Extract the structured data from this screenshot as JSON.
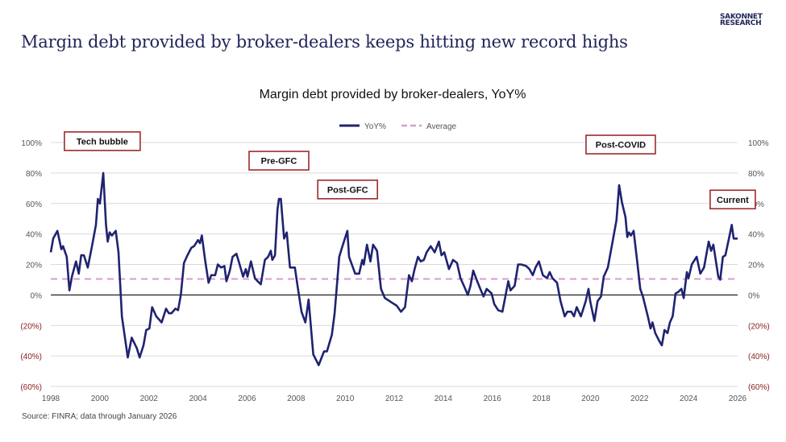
{
  "headline": "Margin debt provided by broker-dealers keeps hitting new record highs",
  "logo": {
    "line1": "SAKONNET",
    "line2": "RESEARCH"
  },
  "source": "Source: FINRA; data through January 2026",
  "colors": {
    "series": "#1f2370",
    "average": "#d99ad0",
    "annotation_border": "#9e2a2a",
    "negative_tick": "#8b2020"
  },
  "chart_data": {
    "type": "line",
    "title": "Margin debt provided by broker-dealers, YoY%",
    "legend": {
      "placement": "top",
      "entries": [
        "YoY%",
        "Average"
      ]
    },
    "grid": true,
    "xlim": [
      1998,
      2026
    ],
    "ylim": [
      -60,
      100
    ],
    "x_ticks": [
      "1998",
      "2000",
      "2002",
      "2004",
      "2006",
      "2008",
      "2010",
      "2012",
      "2014",
      "2016",
      "2018",
      "2020",
      "2022",
      "2024",
      "2026"
    ],
    "y_ticks": [
      {
        "value": 100,
        "label": "100%"
      },
      {
        "value": 80,
        "label": "80%"
      },
      {
        "value": 60,
        "label": "60%"
      },
      {
        "value": 40,
        "label": "40%"
      },
      {
        "value": 20,
        "label": "20%"
      },
      {
        "value": 0,
        "label": "0%"
      },
      {
        "value": -20,
        "label": "(20%)"
      },
      {
        "value": -40,
        "label": "(40%)"
      },
      {
        "value": -60,
        "label": "(60%)"
      }
    ],
    "average": 10.5,
    "annotations": [
      {
        "label": "Tech bubble",
        "year": 2000.1,
        "value": 80
      },
      {
        "label": "Pre-GFC",
        "year": 2007.3,
        "value": 63
      },
      {
        "label": "Post-GFC",
        "year": 2010.1,
        "value": 42
      },
      {
        "label": "Post-COVID",
        "year": 2021.2,
        "value": 72
      },
      {
        "label": "Current",
        "year": 2025.8,
        "value": 46
      }
    ],
    "series": [
      {
        "name": "YoY%",
        "points": [
          [
            1998.0,
            28
          ],
          [
            1998.1,
            37
          ],
          [
            1998.27,
            42
          ],
          [
            1998.43,
            30
          ],
          [
            1998.5,
            32
          ],
          [
            1998.65,
            25
          ],
          [
            1998.76,
            3
          ],
          [
            1998.86,
            12
          ],
          [
            1999.03,
            22
          ],
          [
            1999.14,
            14
          ],
          [
            1999.24,
            26
          ],
          [
            1999.35,
            26
          ],
          [
            1999.51,
            18
          ],
          [
            1999.68,
            32
          ],
          [
            1999.84,
            46
          ],
          [
            1999.92,
            63
          ],
          [
            2000.0,
            60
          ],
          [
            2000.14,
            80
          ],
          [
            2000.25,
            46
          ],
          [
            2000.32,
            35
          ],
          [
            2000.4,
            41
          ],
          [
            2000.49,
            39
          ],
          [
            2000.65,
            42
          ],
          [
            2000.76,
            28
          ],
          [
            2000.9,
            -14
          ],
          [
            2001.14,
            -41
          ],
          [
            2001.3,
            -28
          ],
          [
            2001.51,
            -35
          ],
          [
            2001.62,
            -41
          ],
          [
            2001.78,
            -33
          ],
          [
            2001.89,
            -23
          ],
          [
            2002.02,
            -22
          ],
          [
            2002.13,
            -8
          ],
          [
            2002.3,
            -14
          ],
          [
            2002.52,
            -18
          ],
          [
            2002.7,
            -9
          ],
          [
            2002.81,
            -12
          ],
          [
            2002.92,
            -12
          ],
          [
            2003.08,
            -9
          ],
          [
            2003.19,
            -10
          ],
          [
            2003.3,
            0
          ],
          [
            2003.43,
            21
          ],
          [
            2003.57,
            26
          ],
          [
            2003.73,
            31
          ],
          [
            2003.84,
            32
          ],
          [
            2004.0,
            36
          ],
          [
            2004.08,
            34
          ],
          [
            2004.16,
            39
          ],
          [
            2004.29,
            23
          ],
          [
            2004.43,
            8
          ],
          [
            2004.54,
            13
          ],
          [
            2004.7,
            13
          ],
          [
            2004.81,
            20
          ],
          [
            2004.94,
            18
          ],
          [
            2005.08,
            19
          ],
          [
            2005.16,
            9
          ],
          [
            2005.3,
            16
          ],
          [
            2005.41,
            25
          ],
          [
            2005.57,
            27
          ],
          [
            2005.68,
            21
          ],
          [
            2005.84,
            12
          ],
          [
            2005.95,
            17
          ],
          [
            2006.02,
            12
          ],
          [
            2006.16,
            22
          ],
          [
            2006.32,
            11
          ],
          [
            2006.43,
            9
          ],
          [
            2006.56,
            7
          ],
          [
            2006.73,
            23
          ],
          [
            2006.86,
            25
          ],
          [
            2006.97,
            29
          ],
          [
            2007.03,
            23
          ],
          [
            2007.14,
            26
          ],
          [
            2007.24,
            56
          ],
          [
            2007.3,
            63
          ],
          [
            2007.38,
            63
          ],
          [
            2007.51,
            37
          ],
          [
            2007.62,
            41
          ],
          [
            2007.75,
            18
          ],
          [
            2007.95,
            18
          ],
          [
            2008.05,
            7
          ],
          [
            2008.22,
            -11
          ],
          [
            2008.38,
            -18
          ],
          [
            2008.51,
            -3
          ],
          [
            2008.7,
            -39
          ],
          [
            2008.92,
            -46
          ],
          [
            2009.14,
            -37
          ],
          [
            2009.26,
            -37
          ],
          [
            2009.46,
            -26
          ],
          [
            2009.57,
            -12
          ],
          [
            2009.76,
            25
          ],
          [
            2009.89,
            32
          ],
          [
            2010.09,
            42
          ],
          [
            2010.16,
            25
          ],
          [
            2010.41,
            14
          ],
          [
            2010.57,
            14
          ],
          [
            2010.7,
            23
          ],
          [
            2010.76,
            20
          ],
          [
            2010.89,
            33
          ],
          [
            2011.03,
            22
          ],
          [
            2011.14,
            33
          ],
          [
            2011.3,
            29
          ],
          [
            2011.46,
            4
          ],
          [
            2011.62,
            -2
          ],
          [
            2011.9,
            -5
          ],
          [
            2012.1,
            -7
          ],
          [
            2012.28,
            -11
          ],
          [
            2012.44,
            -8
          ],
          [
            2012.6,
            13
          ],
          [
            2012.72,
            9
          ],
          [
            2012.83,
            17
          ],
          [
            2012.97,
            25
          ],
          [
            2013.08,
            22
          ],
          [
            2013.21,
            23
          ],
          [
            2013.32,
            28
          ],
          [
            2013.49,
            32
          ],
          [
            2013.65,
            28
          ],
          [
            2013.82,
            35
          ],
          [
            2013.93,
            26
          ],
          [
            2014.04,
            28
          ],
          [
            2014.23,
            17
          ],
          [
            2014.4,
            23
          ],
          [
            2014.56,
            21
          ],
          [
            2014.7,
            11
          ],
          [
            2014.87,
            5
          ],
          [
            2015.0,
            0
          ],
          [
            2015.11,
            6
          ],
          [
            2015.22,
            16
          ],
          [
            2015.36,
            10
          ],
          [
            2015.51,
            4
          ],
          [
            2015.64,
            -1
          ],
          [
            2015.77,
            4
          ],
          [
            2015.97,
            1
          ],
          [
            2016.08,
            -6
          ],
          [
            2016.24,
            -10
          ],
          [
            2016.41,
            -11
          ],
          [
            2016.52,
            -2
          ],
          [
            2016.65,
            9
          ],
          [
            2016.74,
            3
          ],
          [
            2016.91,
            6
          ],
          [
            2017.05,
            20
          ],
          [
            2017.18,
            20
          ],
          [
            2017.38,
            19
          ],
          [
            2017.51,
            17
          ],
          [
            2017.65,
            13
          ],
          [
            2017.76,
            18
          ],
          [
            2017.9,
            22
          ],
          [
            2018.06,
            13
          ],
          [
            2018.23,
            11
          ],
          [
            2018.34,
            15
          ],
          [
            2018.45,
            11
          ],
          [
            2018.64,
            8
          ],
          [
            2018.78,
            -4
          ],
          [
            2018.95,
            -14
          ],
          [
            2019.06,
            -11
          ],
          [
            2019.22,
            -11
          ],
          [
            2019.33,
            -14
          ],
          [
            2019.44,
            -8
          ],
          [
            2019.61,
            -14
          ],
          [
            2019.81,
            -4
          ],
          [
            2019.92,
            4
          ],
          [
            2019.99,
            -4
          ],
          [
            2020.16,
            -17
          ],
          [
            2020.29,
            -4
          ],
          [
            2020.43,
            -1
          ],
          [
            2020.54,
            12
          ],
          [
            2020.71,
            18
          ],
          [
            2020.88,
            33
          ],
          [
            2021.06,
            49
          ],
          [
            2021.17,
            72
          ],
          [
            2021.28,
            61
          ],
          [
            2021.43,
            51
          ],
          [
            2021.5,
            38
          ],
          [
            2021.57,
            41
          ],
          [
            2021.65,
            39
          ],
          [
            2021.76,
            42
          ],
          [
            2021.9,
            23
          ],
          [
            2022.03,
            4
          ],
          [
            2022.14,
            -1
          ],
          [
            2022.34,
            -14
          ],
          [
            2022.45,
            -22
          ],
          [
            2022.53,
            -18
          ],
          [
            2022.64,
            -25
          ],
          [
            2022.8,
            -30
          ],
          [
            2022.91,
            -33
          ],
          [
            2023.02,
            -23
          ],
          [
            2023.14,
            -25
          ],
          [
            2023.24,
            -18
          ],
          [
            2023.35,
            -14
          ],
          [
            2023.47,
            1
          ],
          [
            2023.58,
            2
          ],
          [
            2023.71,
            4
          ],
          [
            2023.8,
            -2
          ],
          [
            2023.93,
            15
          ],
          [
            2024.0,
            11
          ],
          [
            2024.13,
            20
          ],
          [
            2024.33,
            25
          ],
          [
            2024.48,
            14
          ],
          [
            2024.63,
            18
          ],
          [
            2024.82,
            35
          ],
          [
            2024.92,
            29
          ],
          [
            2025.01,
            33
          ],
          [
            2025.21,
            12
          ],
          [
            2025.29,
            10
          ],
          [
            2025.4,
            25
          ],
          [
            2025.5,
            26
          ],
          [
            2025.67,
            39
          ],
          [
            2025.76,
            46
          ],
          [
            2025.84,
            37
          ],
          [
            2026.0,
            37
          ]
        ]
      },
      {
        "name": "Average"
      }
    ]
  }
}
